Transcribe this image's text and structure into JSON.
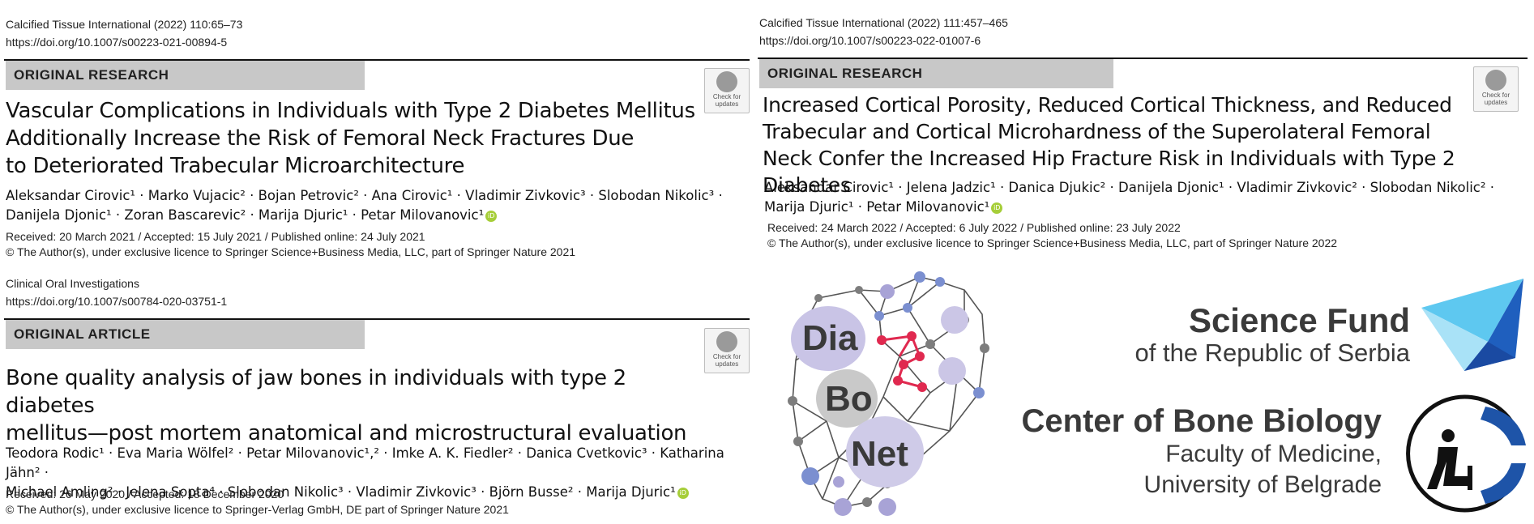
{
  "left": {
    "paper1": {
      "journal": "Calcified Tissue International (2022) 110:65–73",
      "doi": "https://doi.org/10.1007/s00223-021-00894-5",
      "section": "ORIGINAL RESEARCH",
      "title_lines": [
        "Vascular Complications in Individuals with Type 2 Diabetes Mellitus",
        "Additionally Increase the Risk of Femoral Neck Fractures Due",
        "to Deteriorated Trabecular Microarchitecture"
      ],
      "authors_lines": [
        "Aleksandar Cirovic¹ · Marko Vujacic² · Bojan Petrovic² · Ana Cirovic¹ · Vladimir Zivkovic³ · Slobodan Nikolic³ ·",
        "Danijela Djonic¹ · Zoran Bascarevic² · Marija Djuric¹ · Petar Milovanovic¹"
      ],
      "received": "Received: 20 March 2021 / Accepted: 15 July 2021 / Published online: 24 July 2021",
      "copyright": "© The Author(s), under exclusive licence to Springer Science+Business Media, LLC, part of Springer Nature 2021",
      "badge": "Check for updates"
    },
    "paper2": {
      "journal": "Clinical Oral Investigations",
      "doi": "https://doi.org/10.1007/s00784-020-03751-1",
      "section": "ORIGINAL ARTICLE",
      "title_lines": [
        "Bone quality analysis of jaw bones in individuals with type 2 diabetes",
        "mellitus—post mortem anatomical and microstructural evaluation"
      ],
      "authors_lines": [
        "Teodora Rodic¹ · Eva Maria Wölfel² · Petar Milovanovic¹,² · Imke A. K. Fiedler² · Danica Cvetkovic³ · Katharina Jähn² ·",
        "Michael Amling² · Jelena Sopta⁴ · Slobodan Nikolic³ · Vladimir Zivkovic³ · Björn Busse² · Marija Djuric¹"
      ],
      "received": "Received: 26 May 2020 / Accepted: 18 December 2020",
      "copyright": "© The Author(s), under exclusive licence to Springer-Verlag GmbH, DE part of Springer Nature 2021",
      "badge": "Check for updates"
    }
  },
  "right": {
    "paper3": {
      "journal": "Calcified Tissue International (2022) 111:457–465",
      "doi": "https://doi.org/10.1007/s00223-022-01007-6",
      "section": "ORIGINAL RESEARCH",
      "title_lines": [
        "Increased Cortical Porosity, Reduced Cortical Thickness, and Reduced",
        "Trabecular and Cortical Microhardness of the Superolateral Femoral",
        "Neck Confer the Increased Hip Fracture Risk in Individuals with Type 2 Diabetes"
      ],
      "authors_lines": [
        "Aleksandar Cirovic¹ · Jelena Jadzic¹ · Danica Djukic² · Danijela Djonic¹ · Vladimir Zivkovic² · Slobodan Nikolic² ·",
        "Marija Djuric¹ · Petar Milovanovic¹"
      ],
      "received": "Received: 24 March 2022 / Accepted: 6 July 2022 / Published online: 23 July 2022",
      "copyright": "© The Author(s), under exclusive licence to Springer Science+Business Media, LLC, part of Springer Nature 2022",
      "badge": "Check for updates"
    },
    "logo_diabonet": {
      "w1": "Dia",
      "w2": "Bo",
      "w3": "Net"
    },
    "science_fund": {
      "line1": "Science Fund",
      "line2": "of the Republic of Serbia"
    },
    "center": {
      "line1": "Center of Bone Biology",
      "line2": "Faculty of Medicine,",
      "line3": "University of Belgrade"
    }
  },
  "colors": {
    "band": "#c8c8c8",
    "orcid": "#a6ce39",
    "network_red": "#e0294f",
    "node_purple": "#c9c4e6",
    "fund_blue": "#1a8fd8",
    "center_blue": "#1e54a8"
  }
}
